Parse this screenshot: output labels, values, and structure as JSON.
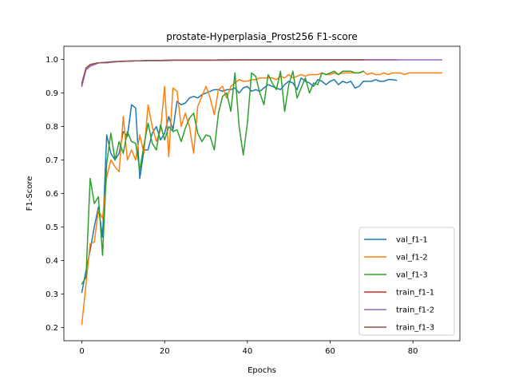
{
  "chart_data": {
    "type": "line",
    "title": "prostate-Hyperplasia_Prost256 F1-score",
    "xlabel": "Epochs",
    "ylabel": "F1-Score",
    "xlim": [
      -4.35,
      91.35
    ],
    "ylim": [
      0.1605,
      1.0395
    ],
    "xticks": [
      0,
      20,
      40,
      60,
      80
    ],
    "yticks": [
      0.2,
      0.3,
      0.4,
      0.5,
      0.6,
      0.7,
      0.8,
      0.9,
      1.0
    ],
    "ytick_labels": [
      "0.2",
      "0.3",
      "0.4",
      "0.5",
      "0.6",
      "0.7",
      "0.8",
      "0.9",
      "1.0"
    ],
    "grid": false,
    "legend_position": "lower-right",
    "series": [
      {
        "name": "val_f1-1",
        "color": "#1f77b4",
        "values": [
          0.305,
          0.37,
          0.43,
          0.5,
          0.56,
          0.47,
          0.775,
          0.72,
          0.7,
          0.72,
          0.785,
          0.77,
          0.865,
          0.855,
          0.645,
          0.73,
          0.73,
          0.78,
          0.8,
          0.76,
          0.78,
          0.83,
          0.79,
          0.875,
          0.865,
          0.87,
          0.885,
          0.89,
          0.885,
          0.895,
          0.9,
          0.905,
          0.91,
          0.91,
          0.905,
          0.91,
          0.91,
          0.915,
          0.9,
          0.915,
          0.92,
          0.905,
          0.91,
          0.905,
          0.915,
          0.925,
          0.92,
          0.915,
          0.91,
          0.925,
          0.935,
          0.93,
          0.91,
          0.945,
          0.935,
          0.93,
          0.92,
          0.94,
          0.935,
          0.925,
          0.935,
          0.94,
          0.925,
          0.935,
          0.93,
          0.935,
          0.915,
          0.92,
          0.935,
          0.935,
          0.935,
          0.94,
          0.935,
          0.935,
          0.94,
          0.94,
          0.938
        ]
      },
      {
        "name": "val_f1-2",
        "color": "#ff7f0e",
        "values": [
          0.21,
          0.33,
          0.45,
          0.455,
          0.55,
          0.525,
          0.65,
          0.7,
          0.68,
          0.665,
          0.83,
          0.7,
          0.73,
          0.7,
          0.775,
          0.72,
          0.865,
          0.8,
          0.755,
          0.79,
          0.92,
          0.71,
          0.915,
          0.905,
          0.8,
          0.84,
          0.8,
          0.72,
          0.86,
          0.89,
          0.92,
          0.885,
          0.835,
          0.91,
          0.92,
          0.885,
          0.92,
          0.93,
          0.94,
          0.935,
          0.935,
          0.94,
          0.94,
          0.945,
          0.945,
          0.945,
          0.945,
          0.94,
          0.95,
          0.945,
          0.955,
          0.945,
          0.95,
          0.955,
          0.95,
          0.955,
          0.955,
          0.955,
          0.96,
          0.955,
          0.955,
          0.96,
          0.955,
          0.96,
          0.96,
          0.96,
          0.96,
          0.96,
          0.965,
          0.955,
          0.96,
          0.955,
          0.955,
          0.96,
          0.955,
          0.96,
          0.96,
          0.96,
          0.955,
          0.96,
          0.96,
          0.96,
          0.96,
          0.96,
          0.96,
          0.96,
          0.96,
          0.96
        ]
      },
      {
        "name": "val_f1-3",
        "color": "#2ca02c",
        "values": [
          0.33,
          0.35,
          0.645,
          0.57,
          0.59,
          0.415,
          0.69,
          0.78,
          0.7,
          0.755,
          0.72,
          0.785,
          0.755,
          0.75,
          0.67,
          0.745,
          0.81,
          0.75,
          0.73,
          0.805,
          0.76,
          0.8,
          0.785,
          0.79,
          0.755,
          0.795,
          0.825,
          0.84,
          0.78,
          0.755,
          0.775,
          0.77,
          0.73,
          0.84,
          0.89,
          0.9,
          0.845,
          0.96,
          0.8,
          0.715,
          0.81,
          0.96,
          0.95,
          0.9,
          0.865,
          0.955,
          0.93,
          0.91,
          0.965,
          0.845,
          0.925,
          0.965,
          0.885,
          0.915,
          0.945,
          0.9,
          0.93,
          0.925,
          0.96,
          0.955,
          0.96,
          0.965,
          0.955,
          0.965,
          0.965,
          0.965,
          0.96,
          0.96,
          0.965
        ]
      },
      {
        "name": "train_f1-1",
        "color": "#d62728",
        "values": [
          0.925,
          0.97,
          0.98,
          0.985,
          0.99,
          0.99,
          0.99,
          0.992,
          0.993,
          0.994,
          0.995,
          0.995,
          0.995,
          0.996,
          0.996,
          0.996,
          0.997,
          0.997,
          0.997,
          0.997,
          0.997,
          0.997,
          0.998,
          0.998,
          0.998,
          0.998,
          0.998,
          0.998,
          0.998,
          0.998,
          0.998,
          0.998,
          0.998,
          0.998,
          0.998,
          0.998,
          0.999,
          0.999,
          0.999,
          0.999,
          0.999,
          0.999,
          0.999,
          0.999,
          0.999,
          0.999,
          0.999,
          0.999,
          0.999,
          0.999,
          0.999,
          0.999,
          0.999,
          0.999,
          0.999,
          0.999,
          0.999,
          0.999,
          0.999,
          0.999,
          0.999,
          0.999,
          0.999,
          0.999,
          0.999,
          0.999,
          0.999,
          0.999,
          0.999,
          0.999,
          0.999,
          0.999,
          0.999,
          0.999,
          0.999,
          0.999,
          0.999
        ]
      },
      {
        "name": "train_f1-2",
        "color": "#9467bd",
        "values": [
          0.92,
          0.97,
          0.98,
          0.985,
          0.99,
          0.99,
          0.99,
          0.992,
          0.993,
          0.994,
          0.994,
          0.995,
          0.995,
          0.996,
          0.996,
          0.996,
          0.997,
          0.997,
          0.997,
          0.997,
          0.997,
          0.997,
          0.998,
          0.998,
          0.998,
          0.998,
          0.998,
          0.998,
          0.998,
          0.998,
          0.998,
          0.998,
          0.998,
          0.998,
          0.998,
          0.998,
          0.998,
          0.999,
          0.999,
          0.999,
          0.999,
          0.999,
          0.999,
          0.999,
          0.999,
          0.999,
          0.999,
          0.999,
          0.999,
          0.999,
          0.999,
          0.999,
          0.999,
          0.999,
          0.999,
          0.999,
          0.999,
          0.999,
          0.999,
          0.999,
          0.999,
          0.999,
          0.999,
          0.999,
          0.999,
          0.999,
          0.999,
          0.999,
          0.999,
          0.999,
          0.999,
          0.999,
          0.999,
          0.999,
          0.999,
          0.999,
          0.999,
          0.999,
          0.999,
          0.999,
          0.999,
          0.999,
          0.999,
          0.999,
          0.999,
          0.999,
          0.999,
          0.999
        ]
      },
      {
        "name": "train_f1-3",
        "color": "#8c564b",
        "values": [
          0.93,
          0.975,
          0.985,
          0.988,
          0.99,
          0.991,
          0.992,
          0.993,
          0.994,
          0.994,
          0.995,
          0.995,
          0.996,
          0.996,
          0.996,
          0.997,
          0.997,
          0.997,
          0.997,
          0.997,
          0.998,
          0.998,
          0.998,
          0.998,
          0.998,
          0.998,
          0.998,
          0.998,
          0.998,
          0.998,
          0.998,
          0.998,
          0.998,
          0.999,
          0.999,
          0.999,
          0.999,
          0.999,
          0.999,
          0.999,
          0.999,
          0.999,
          0.999,
          0.999,
          0.999,
          0.999,
          0.999,
          0.999,
          0.999,
          0.999,
          0.999,
          0.999,
          0.999,
          0.999,
          0.999,
          0.999,
          0.999,
          0.999,
          0.999,
          0.999,
          0.999,
          0.999,
          0.999,
          0.999,
          0.999,
          0.999,
          0.999,
          0.999,
          0.999
        ]
      }
    ]
  }
}
